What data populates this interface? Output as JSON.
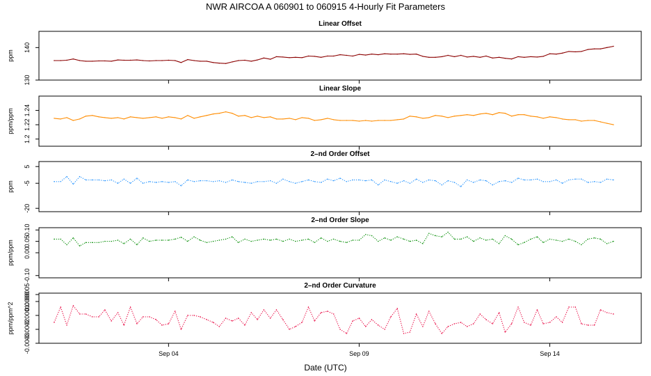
{
  "title": "NWR   AIRCOA A   060901 to 060915   4-Hourly Fit Parameters",
  "xlabel": "Date (UTC)",
  "x_ticks": [
    {
      "day": 4,
      "label": "Sep 04"
    },
    {
      "day": 9,
      "label": "Sep 09"
    },
    {
      "day": 14,
      "label": "Sep 14"
    }
  ],
  "chart_data": [
    {
      "type": "line",
      "title": "Linear Offset",
      "ylabel": "ppm",
      "color": "#8b0000",
      "dash": "",
      "ylim": [
        130,
        145
      ],
      "yticks": [
        {
          "v": 130,
          "label": "130"
        },
        {
          "v": 140,
          "label": "140"
        }
      ],
      "xlim": [
        0.6,
        16.4
      ],
      "x": [
        1.0,
        1.17,
        1.33,
        1.5,
        1.67,
        1.83,
        2.0,
        2.17,
        2.33,
        2.5,
        2.67,
        2.83,
        3.0,
        3.17,
        3.33,
        3.5,
        3.67,
        3.83,
        4.0,
        4.17,
        4.33,
        4.5,
        4.67,
        4.83,
        5.0,
        5.17,
        5.33,
        5.5,
        5.67,
        5.83,
        6.0,
        6.17,
        6.33,
        6.5,
        6.67,
        6.83,
        7.0,
        7.17,
        7.33,
        7.5,
        7.67,
        7.83,
        8.0,
        8.17,
        8.33,
        8.5,
        8.67,
        8.83,
        9.0,
        9.17,
        9.33,
        9.5,
        9.67,
        9.83,
        10.0,
        10.17,
        10.33,
        10.5,
        10.67,
        10.83,
        11.0,
        11.17,
        11.33,
        11.5,
        11.67,
        11.83,
        12.0,
        12.17,
        12.33,
        12.5,
        12.67,
        12.83,
        13.0,
        13.17,
        13.33,
        13.5,
        13.67,
        13.83,
        14.0,
        14.17,
        14.33,
        14.5,
        14.67,
        14.83,
        15.0,
        15.17,
        15.33,
        15.5,
        15.67
      ],
      "values": [
        136.0,
        136.0,
        136.1,
        136.5,
        136.0,
        135.8,
        135.8,
        135.9,
        135.9,
        135.8,
        136.2,
        136.1,
        136.1,
        136.2,
        136.0,
        135.9,
        136.0,
        136.0,
        136.1,
        136.0,
        135.4,
        136.3,
        136.0,
        135.8,
        135.8,
        135.4,
        135.2,
        135.1,
        135.6,
        136.0,
        136.1,
        135.8,
        136.2,
        136.8,
        136.4,
        137.2,
        137.1,
        136.9,
        137.0,
        136.9,
        137.4,
        137.3,
        137.0,
        137.4,
        137.4,
        137.8,
        137.6,
        137.4,
        137.9,
        137.7,
        138.0,
        137.8,
        138.1,
        138.0,
        138.0,
        138.1,
        137.9,
        138.0,
        137.3,
        137.0,
        137.0,
        137.2,
        137.6,
        137.2,
        137.6,
        137.1,
        137.3,
        137.0,
        137.4,
        136.8,
        137.0,
        136.7,
        136.5,
        137.2,
        137.0,
        137.2,
        137.1,
        137.3,
        138.1,
        138.0,
        138.3,
        138.8,
        138.7,
        138.8,
        139.4,
        139.6,
        139.6,
        140.0,
        140.4
      ]
    },
    {
      "type": "line",
      "title": "Linear Slope",
      "ylabel": "ppm/ppm",
      "color": "#ff8c00",
      "dash": "",
      "ylim": [
        1.19,
        1.26
      ],
      "yticks": [
        {
          "v": 1.2,
          "label": "1.2"
        },
        {
          "v": 1.22,
          "label": "1.22"
        },
        {
          "v": 1.24,
          "label": "1.24"
        }
      ],
      "xlim": [
        0.6,
        16.4
      ],
      "x": [
        1.0,
        1.17,
        1.33,
        1.5,
        1.67,
        1.83,
        2.0,
        2.17,
        2.33,
        2.5,
        2.67,
        2.83,
        3.0,
        3.17,
        3.33,
        3.5,
        3.67,
        3.83,
        4.0,
        4.17,
        4.33,
        4.5,
        4.67,
        4.83,
        5.0,
        5.17,
        5.33,
        5.5,
        5.67,
        5.83,
        6.0,
        6.17,
        6.33,
        6.5,
        6.67,
        6.83,
        7.0,
        7.17,
        7.33,
        7.5,
        7.67,
        7.83,
        8.0,
        8.17,
        8.33,
        8.5,
        8.67,
        8.83,
        9.0,
        9.17,
        9.33,
        9.5,
        9.67,
        9.83,
        10.0,
        10.17,
        10.33,
        10.5,
        10.67,
        10.83,
        11.0,
        11.17,
        11.33,
        11.5,
        11.67,
        11.83,
        12.0,
        12.17,
        12.33,
        12.5,
        12.67,
        12.83,
        13.0,
        13.17,
        13.33,
        13.5,
        13.67,
        13.83,
        14.0,
        14.17,
        14.33,
        14.5,
        14.67,
        14.83,
        15.0,
        15.17,
        15.33,
        15.5,
        15.67
      ],
      "values": [
        1.229,
        1.228,
        1.23,
        1.226,
        1.228,
        1.232,
        1.233,
        1.231,
        1.23,
        1.229,
        1.23,
        1.228,
        1.231,
        1.23,
        1.229,
        1.23,
        1.231,
        1.229,
        1.231,
        1.23,
        1.228,
        1.233,
        1.229,
        1.231,
        1.233,
        1.235,
        1.236,
        1.238,
        1.236,
        1.232,
        1.233,
        1.23,
        1.232,
        1.23,
        1.231,
        1.228,
        1.228,
        1.229,
        1.227,
        1.23,
        1.229,
        1.226,
        1.227,
        1.229,
        1.227,
        1.226,
        1.226,
        1.226,
        1.225,
        1.226,
        1.225,
        1.226,
        1.226,
        1.226,
        1.227,
        1.228,
        1.232,
        1.231,
        1.229,
        1.23,
        1.233,
        1.232,
        1.23,
        1.232,
        1.233,
        1.234,
        1.233,
        1.235,
        1.236,
        1.234,
        1.237,
        1.236,
        1.232,
        1.234,
        1.234,
        1.232,
        1.231,
        1.229,
        1.231,
        1.23,
        1.228,
        1.227,
        1.227,
        1.225,
        1.226,
        1.226,
        1.224,
        1.222,
        1.22
      ]
    },
    {
      "type": "line",
      "title": "2–nd Order Offset",
      "ylabel": "ppm",
      "color": "#1e90ff",
      "dash": "1.2 1.8",
      "ylim": [
        -22,
        8
      ],
      "yticks": [
        {
          "v": -20,
          "label": "-20"
        },
        {
          "v": -5,
          "label": "-5"
        },
        {
          "v": 5,
          "label": "5"
        }
      ],
      "xlim": [
        0.6,
        16.4
      ],
      "x": [
        1.0,
        1.17,
        1.33,
        1.5,
        1.67,
        1.83,
        2.0,
        2.17,
        2.33,
        2.5,
        2.67,
        2.83,
        3.0,
        3.17,
        3.33,
        3.5,
        3.67,
        3.83,
        4.0,
        4.17,
        4.33,
        4.5,
        4.67,
        4.83,
        5.0,
        5.17,
        5.33,
        5.5,
        5.67,
        5.83,
        6.0,
        6.17,
        6.33,
        6.5,
        6.67,
        6.83,
        7.0,
        7.17,
        7.33,
        7.5,
        7.67,
        7.83,
        8.0,
        8.17,
        8.33,
        8.5,
        8.67,
        8.83,
        9.0,
        9.17,
        9.33,
        9.5,
        9.67,
        9.83,
        10.0,
        10.17,
        10.33,
        10.5,
        10.67,
        10.83,
        11.0,
        11.17,
        11.33,
        11.5,
        11.67,
        11.83,
        12.0,
        12.17,
        12.33,
        12.5,
        12.67,
        12.83,
        13.0,
        13.17,
        13.33,
        13.5,
        13.67,
        13.83,
        14.0,
        14.17,
        14.33,
        14.5,
        14.67,
        14.83,
        15.0,
        15.17,
        15.33,
        15.5,
        15.67
      ],
      "values": [
        -4.0,
        -4.0,
        -1.0,
        -5.5,
        -1.0,
        -3.0,
        -3.0,
        -3.0,
        -3.5,
        -3.0,
        -5.0,
        -2.5,
        -5.0,
        -2.0,
        -5.0,
        -4.0,
        -4.5,
        -4.0,
        -4.5,
        -4.0,
        -6.5,
        -3.0,
        -4.0,
        -3.5,
        -3.5,
        -4.0,
        -3.5,
        -4.5,
        -3.0,
        -4.0,
        -4.5,
        -5.0,
        -4.0,
        -4.0,
        -3.5,
        -5.0,
        -2.5,
        -4.0,
        -5.0,
        -4.0,
        -3.0,
        -4.0,
        -4.5,
        -2.5,
        -3.5,
        -2.0,
        -4.0,
        -3.0,
        -3.0,
        -3.5,
        -3.0,
        -6.0,
        -3.0,
        -4.0,
        -5.0,
        -3.5,
        -5.0,
        -2.5,
        -4.5,
        -3.0,
        -3.5,
        -6.0,
        -3.5,
        -4.5,
        -7.0,
        -3.0,
        -4.5,
        -3.0,
        -3.5,
        -6.0,
        -4.0,
        -3.5,
        -4.5,
        -2.0,
        -3.0,
        -3.0,
        -2.5,
        -4.0,
        -4.0,
        -3.0,
        -5.0,
        -3.0,
        -2.5,
        -2.5,
        -4.5,
        -4.0,
        -4.5,
        -2.5,
        -3.0
      ]
    },
    {
      "type": "line",
      "title": "2–nd Order Slope",
      "ylabel": "ppm/ppm",
      "color": "#008b00",
      "dash": "1.2 1.8",
      "ylim": [
        -0.11,
        0.11
      ],
      "yticks": [
        {
          "v": -0.1,
          "label": "-0.10"
        },
        {
          "v": 0.0,
          "label": "0.00"
        },
        {
          "v": 0.05,
          "label": "0.05"
        },
        {
          "v": 0.1,
          "label": "0.10"
        }
      ],
      "xlim": [
        0.6,
        16.4
      ],
      "x": [
        1.0,
        1.17,
        1.33,
        1.5,
        1.67,
        1.83,
        2.0,
        2.17,
        2.33,
        2.5,
        2.67,
        2.83,
        3.0,
        3.17,
        3.33,
        3.5,
        3.67,
        3.83,
        4.0,
        4.17,
        4.33,
        4.5,
        4.67,
        4.83,
        5.0,
        5.17,
        5.33,
        5.5,
        5.67,
        5.83,
        6.0,
        6.17,
        6.33,
        6.5,
        6.67,
        6.83,
        7.0,
        7.17,
        7.33,
        7.5,
        7.67,
        7.83,
        8.0,
        8.17,
        8.33,
        8.5,
        8.67,
        8.83,
        9.0,
        9.17,
        9.33,
        9.5,
        9.67,
        9.83,
        10.0,
        10.17,
        10.33,
        10.5,
        10.67,
        10.83,
        11.0,
        11.17,
        11.33,
        11.5,
        11.67,
        11.83,
        12.0,
        12.17,
        12.33,
        12.5,
        12.67,
        12.83,
        13.0,
        13.17,
        13.33,
        13.5,
        13.67,
        13.83,
        14.0,
        14.17,
        14.33,
        14.5,
        14.67,
        14.83,
        15.0,
        15.17,
        15.33,
        15.5,
        15.67
      ],
      "values": [
        0.06,
        0.06,
        0.035,
        0.065,
        0.03,
        0.045,
        0.045,
        0.045,
        0.05,
        0.05,
        0.055,
        0.04,
        0.06,
        0.035,
        0.065,
        0.05,
        0.055,
        0.055,
        0.055,
        0.06,
        0.068,
        0.05,
        0.07,
        0.055,
        0.045,
        0.05,
        0.055,
        0.06,
        0.07,
        0.045,
        0.06,
        0.05,
        0.055,
        0.06,
        0.055,
        0.06,
        0.05,
        0.06,
        0.05,
        0.055,
        0.06,
        0.045,
        0.065,
        0.05,
        0.06,
        0.05,
        0.045,
        0.055,
        0.055,
        0.08,
        0.075,
        0.05,
        0.065,
        0.055,
        0.07,
        0.06,
        0.05,
        0.055,
        0.04,
        0.085,
        0.075,
        0.07,
        0.09,
        0.06,
        0.06,
        0.07,
        0.05,
        0.065,
        0.055,
        0.06,
        0.04,
        0.075,
        0.06,
        0.035,
        0.045,
        0.06,
        0.07,
        0.045,
        0.06,
        0.055,
        0.05,
        0.06,
        0.05,
        0.035,
        0.06,
        0.065,
        0.06,
        0.04,
        0.05
      ]
    },
    {
      "type": "line",
      "title": "2–nd Order Curvature",
      "ylabel": "ppm/ppm^2",
      "color": "#e8003d",
      "dash": "1.2 1.8",
      "ylim": [
        -0.0003,
        6e-05
      ],
      "yticks": [
        {
          "v": -0.0003,
          "label": "-0.0003"
        },
        {
          "v": -0.0002,
          "label": "-0.0002"
        },
        {
          "v": -0.0001,
          "label": "-0.0001"
        },
        {
          "v": 0.0,
          "label": "0.0000"
        },
        {
          "v": 5e-05,
          "label": "0.00005"
        }
      ],
      "xlim": [
        0.6,
        16.4
      ],
      "x": [
        1.0,
        1.17,
        1.33,
        1.5,
        1.67,
        1.83,
        2.0,
        2.17,
        2.33,
        2.5,
        2.67,
        2.83,
        3.0,
        3.17,
        3.33,
        3.5,
        3.67,
        3.83,
        4.0,
        4.17,
        4.33,
        4.5,
        4.67,
        4.83,
        5.0,
        5.17,
        5.33,
        5.5,
        5.67,
        5.83,
        6.0,
        6.17,
        6.33,
        6.5,
        6.67,
        6.83,
        7.0,
        7.17,
        7.33,
        7.5,
        7.67,
        7.83,
        8.0,
        8.17,
        8.33,
        8.5,
        8.67,
        8.83,
        9.0,
        9.17,
        9.33,
        9.5,
        9.67,
        9.83,
        10.0,
        10.17,
        10.33,
        10.5,
        10.67,
        10.83,
        11.0,
        11.17,
        11.33,
        11.5,
        11.67,
        11.83,
        12.0,
        12.17,
        12.33,
        12.5,
        12.67,
        12.83,
        13.0,
        13.17,
        13.33,
        13.5,
        13.67,
        13.83,
        14.0,
        14.17,
        14.33,
        14.5,
        14.67,
        14.83,
        15.0,
        15.17,
        15.33,
        15.5,
        15.67
      ],
      "values": [
        -0.00015,
        -4e-05,
        -0.00017,
        -3e-05,
        -9e-05,
        -9e-05,
        -0.00011,
        -0.00011,
        -6e-05,
        -0.00014,
        -8e-05,
        -0.00017,
        -4e-05,
        -0.00016,
        -0.00011,
        -0.00011,
        -0.00013,
        -0.00017,
        -0.00016,
        -7e-05,
        -0.0002,
        -0.0001,
        -0.0001,
        -0.00011,
        -0.00013,
        -0.00015,
        -0.00018,
        -0.00012,
        -0.00014,
        -0.00012,
        -0.00017,
        -8e-05,
        -0.00013,
        -6e-05,
        -0.00012,
        -6e-05,
        -0.00013,
        -0.0002,
        -0.00018,
        -0.00015,
        -4e-05,
        -0.00014,
        -8e-05,
        -7e-05,
        -9e-05,
        -0.0002,
        -0.00023,
        -0.00014,
        -0.00012,
        -0.00018,
        -0.00013,
        -0.00017,
        -0.0002,
        -0.00011,
        -5e-05,
        -0.00023,
        -0.00022,
        -9e-05,
        -0.00018,
        -7e-05,
        -0.00016,
        -0.00023,
        -0.00018,
        -0.00016,
        -0.00015,
        -0.00018,
        -0.00016,
        -9e-05,
        -0.00013,
        -0.00016,
        -8e-05,
        -0.00022,
        -0.00016,
        -4e-05,
        -0.00015,
        -0.00017,
        -6e-05,
        -0.00016,
        -0.00015,
        -0.00011,
        -0.00015,
        -4e-05,
        -4e-05,
        -0.00016,
        -0.00017,
        -0.00017,
        -6e-05,
        -8e-05,
        -9e-05
      ]
    }
  ]
}
